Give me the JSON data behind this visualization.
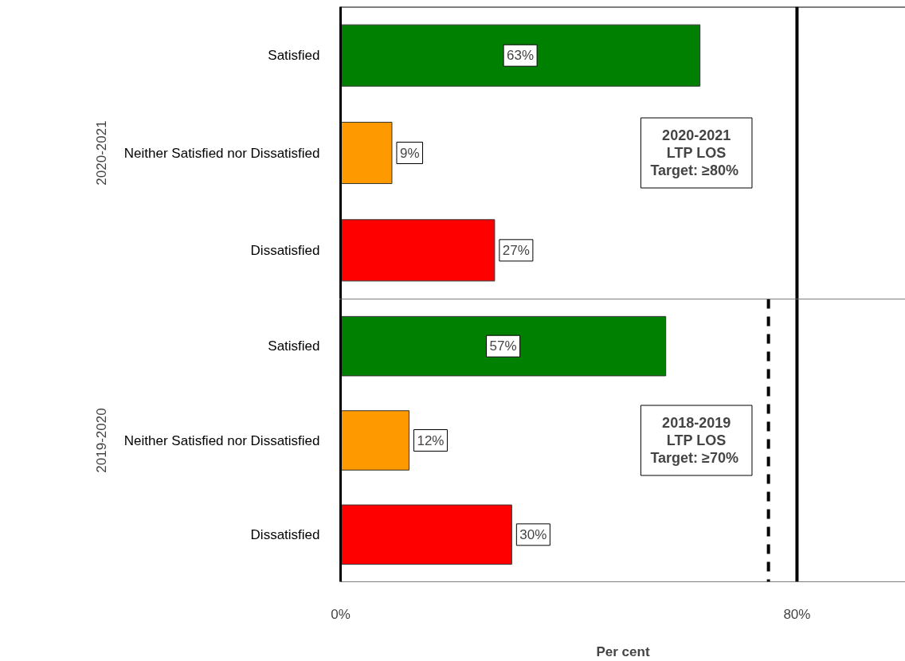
{
  "chart_data": [
    {
      "type": "bar",
      "orientation": "horizontal",
      "ylabel": "2020-2021",
      "categories": [
        "Satisfied",
        "Neither Satisfied nor Dissatisfied",
        "Dissatisfied"
      ],
      "values": [
        63,
        9,
        27
      ],
      "colors": [
        "#008000",
        "#ff9900",
        "#ff0000"
      ],
      "data_labels": true,
      "value_labels": [
        "63%",
        "9%",
        "27%"
      ],
      "xlim": [
        0,
        99
      ],
      "tick_labels": "y",
      "grid": false,
      "ref_lines": [
        {
          "axis": "x",
          "value": 80,
          "color": "#000000",
          "line_style": "solid"
        }
      ],
      "annotations": [
        "2020-2021\nLTP LOS\nTarget:  ≥80%"
      ]
    },
    {
      "type": "bar",
      "orientation": "horizontal",
      "ylabel": "2019-2020",
      "xlabel": "Per cent",
      "categories": [
        "Satisfied",
        "Neither Satisfied nor Dissatisfied",
        "Dissatisfied"
      ],
      "values": [
        57,
        12,
        30
      ],
      "colors": [
        "#008000",
        "#ff9900",
        "#ff0000"
      ],
      "data_labels": true,
      "value_labels": [
        "57%",
        "12%",
        "30%"
      ],
      "xlim": [
        0,
        99
      ],
      "xticks": [
        {
          "value": 0,
          "label": "0%"
        },
        {
          "value": 80,
          "label": "80%"
        }
      ],
      "grid": false,
      "ref_lines": [
        {
          "axis": "x",
          "value": 80,
          "color": "#000000",
          "line_style": "solid"
        },
        {
          "axis": "x",
          "value": 75,
          "color": "#000000",
          "line_style": "dashed"
        }
      ],
      "annotations": [
        "2018-2019\nLTP LOS\nTarget:  ≥70%"
      ]
    }
  ]
}
